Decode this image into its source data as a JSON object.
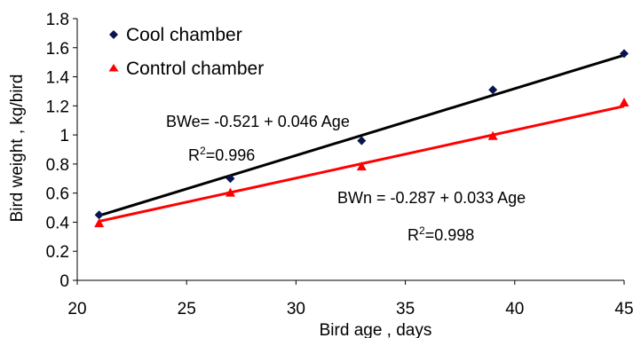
{
  "chart_data": {
    "type": "scatter",
    "title": "",
    "xlabel": "Bird age , days",
    "ylabel": "Bird weight , kg/bird",
    "xlim": [
      20,
      45
    ],
    "ylim": [
      0,
      1.8
    ],
    "xticks": [
      20,
      25,
      30,
      35,
      40,
      45
    ],
    "yticks": [
      0,
      0.2,
      0.4,
      0.6,
      0.8,
      1,
      1.2,
      1.4,
      1.6,
      1.8
    ],
    "xtick_labels": [
      "20",
      "25",
      "30",
      "35",
      "40",
      "45"
    ],
    "ytick_labels": [
      "0",
      "0.2",
      "0.4",
      "0.6",
      "0.8",
      "1",
      "1.2",
      "1.4",
      "1.6",
      "1.8"
    ],
    "grid": false,
    "legend_position": "top-left",
    "series": [
      {
        "name": "Cool chamber",
        "marker": "diamond",
        "color": "#0a1450",
        "line_color": "#000000",
        "x": [
          21,
          27,
          33,
          39,
          45
        ],
        "y": [
          0.45,
          0.7,
          0.96,
          1.31,
          1.56
        ],
        "fit": {
          "intercept": -0.521,
          "slope": 0.046
        }
      },
      {
        "name": "Control chamber",
        "marker": "triangle",
        "color": "#ff0000",
        "line_color": "#ff0000",
        "x": [
          21,
          27,
          33,
          39,
          45
        ],
        "y": [
          0.39,
          0.6,
          0.78,
          0.99,
          1.22
        ],
        "fit": {
          "intercept": -0.287,
          "slope": 0.033
        }
      }
    ],
    "annotations": {
      "cool_equation": "BWe= -0.521 + 0.046 Age",
      "cool_r2_label": "R",
      "cool_r2_sup": "2",
      "cool_r2_value": "=0.996",
      "control_equation": "BWn = -0.287 + 0.033 Age",
      "control_r2_label": "R",
      "control_r2_sup": "2",
      "control_r2_value": "=0.998"
    }
  }
}
